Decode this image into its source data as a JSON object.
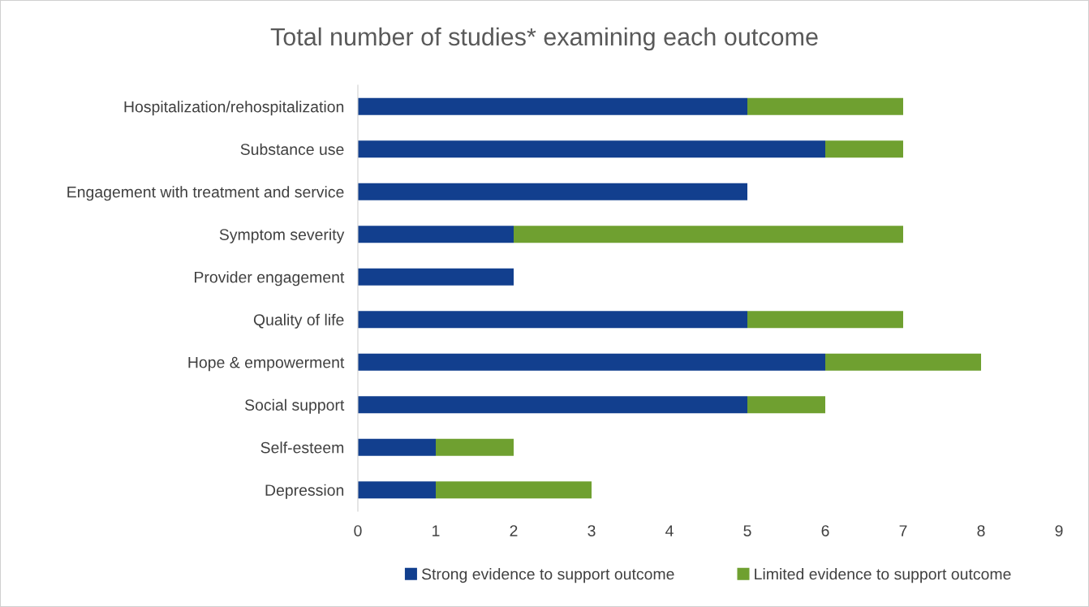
{
  "chart_data": {
    "type": "bar",
    "orientation": "horizontal",
    "stacked": true,
    "title": "Total number of studies* examining each outcome",
    "categories": [
      "Hospitalization/rehospitalization",
      "Substance use",
      "Engagement with treatment and service",
      "Symptom severity",
      "Provider engagement",
      "Quality of life",
      "Hope & empowerment",
      "Social support",
      "Self-esteem",
      "Depression"
    ],
    "series": [
      {
        "name": "Strong evidence to support outcome",
        "color": "#123f8e",
        "values": [
          5,
          6,
          5,
          2,
          2,
          5,
          6,
          5,
          1,
          1
        ]
      },
      {
        "name": "Limited evidence to support outcome",
        "color": "#6fa030",
        "values": [
          2,
          1,
          0,
          5,
          0,
          2,
          2,
          1,
          1,
          2
        ]
      }
    ],
    "xlim": [
      0,
      9
    ],
    "xticks": [
      0,
      1,
      2,
      3,
      4,
      5,
      6,
      7,
      8,
      9
    ],
    "grid": false,
    "legend": "bottom"
  }
}
